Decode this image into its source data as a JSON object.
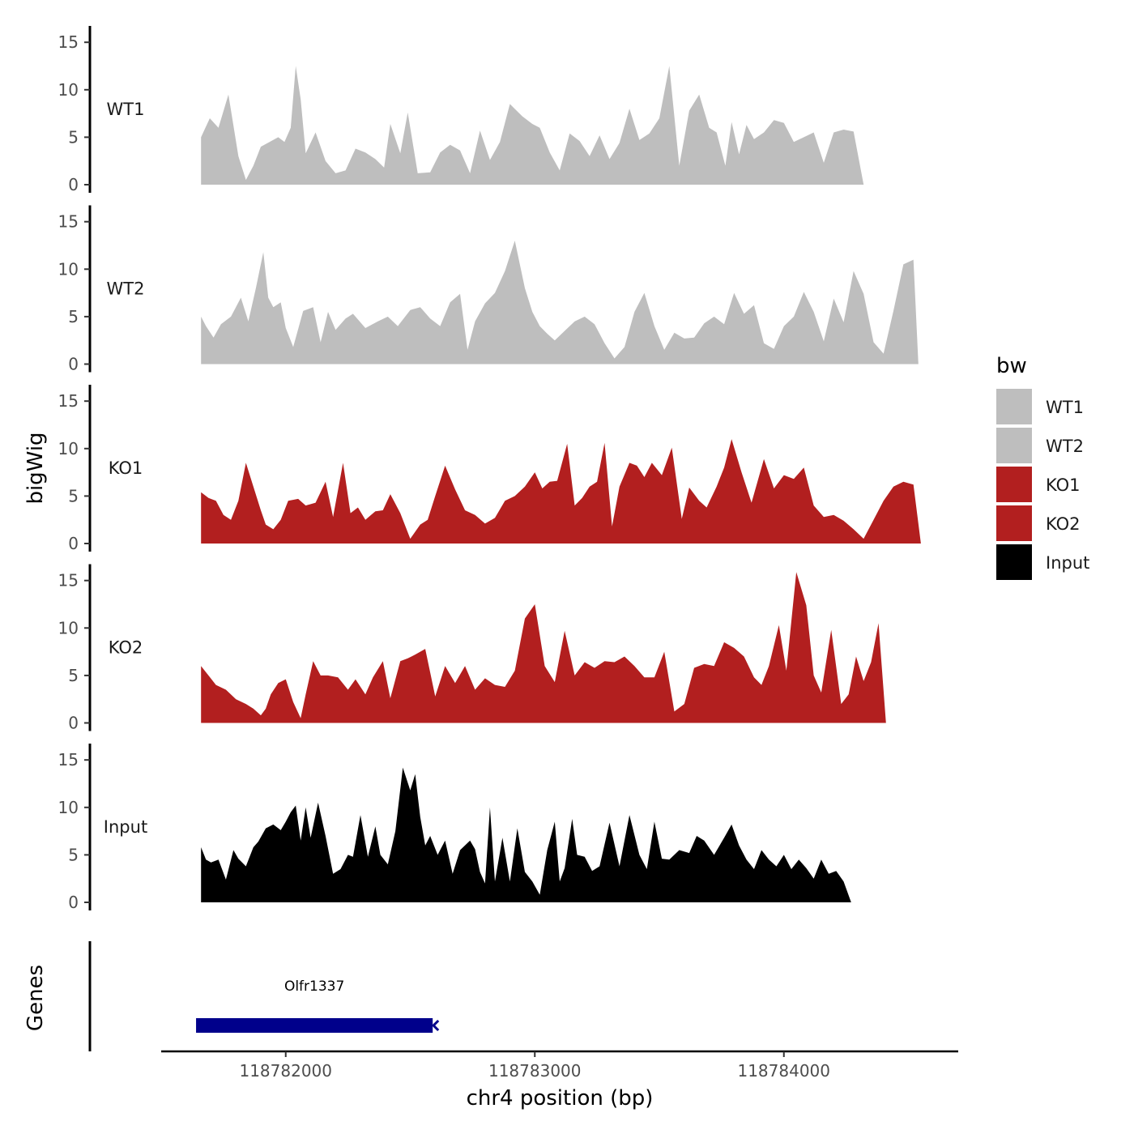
{
  "chart_data": {
    "type": "area",
    "ylabel": "bigWig",
    "xlabel": "chr4 position (bp)",
    "xlim": [
      118781500,
      118784700
    ],
    "x_ticks": [
      "118782000",
      "118783000",
      "118784000"
    ],
    "x_tick_values": [
      118782000,
      118783000,
      118784000
    ],
    "ylim": [
      0,
      16
    ],
    "y_ticks": [
      "0",
      "5",
      "10",
      "15"
    ],
    "y_tick_values": [
      0,
      5,
      10,
      15
    ],
    "grid": false,
    "legend": {
      "title": "bw",
      "placement": "right",
      "items": [
        {
          "label": "WT1",
          "color": "#bebebe"
        },
        {
          "label": "WT2",
          "color": "#bebebe"
        },
        {
          "label": "KO1",
          "color": "#b21f1f"
        },
        {
          "label": "KO2",
          "color": "#b21f1f"
        },
        {
          "label": "Input",
          "color": "#000000"
        }
      ]
    },
    "tracks": [
      {
        "name": "WT1",
        "color": "#bebebe",
        "x": [
          118781660,
          118781695,
          118781730,
          118781770,
          118781810,
          118781840,
          118781870,
          118781900,
          118781935,
          118781970,
          118781995,
          118782020,
          118782040,
          118782060,
          118782080,
          118782120,
          118782160,
          118782200,
          118782240,
          118782280,
          118782320,
          118782360,
          118782395,
          118782420,
          118782460,
          118782490,
          118782530,
          118782580,
          118782620,
          118782660,
          118782700,
          118782740,
          118782780,
          118782820,
          118782860,
          118782900,
          118782950,
          118782990,
          118783020,
          118783060,
          118783100,
          118783140,
          118783180,
          118783220,
          118783260,
          118783300,
          118783340,
          118783380,
          118783420,
          118783460,
          118783500,
          118783540,
          118783580,
          118783620,
          118783660,
          118783700,
          118783730,
          118783765,
          118783790,
          118783820,
          118783850,
          118783880,
          118783920,
          118783960,
          118784000,
          118784040,
          118784080,
          118784120,
          118784160,
          118784200,
          118784240,
          118784280,
          118784320,
          118784360,
          118784400,
          118784440,
          118784470,
          118784500,
          118784540,
          118784565
        ],
        "y": [
          5,
          7,
          6,
          9.5,
          3,
          0.5,
          2,
          4,
          4.5,
          5,
          4.5,
          6,
          12.5,
          9,
          3.3,
          5.5,
          2.5,
          1.2,
          1.5,
          3.8,
          3.4,
          2.7,
          1.8,
          6.4,
          3.3,
          7.6,
          1.2,
          1.3,
          3.4,
          4.2,
          3.6,
          1.2,
          5.7,
          2.6,
          4.5,
          8.5,
          7.2,
          6.4,
          6,
          3.4,
          1.5,
          5.4,
          4.6,
          3,
          5.2,
          2.7,
          4.4,
          8,
          4.7,
          5.4,
          7,
          12.5,
          2,
          7.8,
          9.5,
          6,
          5.5,
          2,
          6.6,
          3.2,
          6.3,
          4.8,
          5.5,
          6.8,
          6.5,
          4.5,
          5,
          5.5,
          2.3,
          5.5,
          5.8,
          5.6,
          0,
          0,
          0,
          0,
          0,
          0,
          0,
          0
        ]
      },
      {
        "name": "WT2",
        "color": "#bebebe",
        "x": [
          118781660,
          118781680,
          118781710,
          118781740,
          118781780,
          118781820,
          118781850,
          118781880,
          118781910,
          118781930,
          118781950,
          118781980,
          118782000,
          118782030,
          118782070,
          118782110,
          118782140,
          118782170,
          118782200,
          118782240,
          118782270,
          118782320,
          118782370,
          118782410,
          118782450,
          118782500,
          118782540,
          118782580,
          118782620,
          118782660,
          118782700,
          118782730,
          118782760,
          118782800,
          118782840,
          118782880,
          118782920,
          118782960,
          118782990,
          118783020,
          118783050,
          118783080,
          118783120,
          118783160,
          118783200,
          118783240,
          118783280,
          118783320,
          118783360,
          118783400,
          118783440,
          118783480,
          118783520,
          118783560,
          118783600,
          118783640,
          118783680,
          118783720,
          118783760,
          118783800,
          118783840,
          118783880,
          118783920,
          118783960,
          118784000,
          118784040,
          118784080,
          118784120,
          118784160,
          118784200,
          118784240,
          118784280,
          118784320,
          118784360,
          118784400,
          118784440,
          118784480,
          118784520,
          118784540,
          118784555
        ],
        "y": [
          5,
          4,
          2.8,
          4.2,
          5,
          7,
          4.5,
          8,
          11.8,
          7,
          6,
          6.5,
          3.8,
          1.8,
          5.6,
          6,
          2.3,
          5.5,
          3.6,
          4.8,
          5.3,
          3.8,
          4.5,
          5,
          4,
          5.7,
          6,
          4.8,
          4,
          6.5,
          7.4,
          1.5,
          4.5,
          6.4,
          7.5,
          9.8,
          13,
          8,
          5.5,
          4,
          3.2,
          2.5,
          3.5,
          4.5,
          5,
          4.2,
          2.2,
          0.6,
          1.8,
          5.5,
          7.5,
          4,
          1.5,
          3.3,
          2.7,
          2.8,
          4.3,
          5,
          4.2,
          7.5,
          5.3,
          6.2,
          2.2,
          1.6,
          4,
          5,
          7.6,
          5.5,
          2.4,
          6.9,
          4.4,
          9.8,
          7.4,
          2.3,
          1.1,
          5.6,
          10.5,
          11,
          0,
          0
        ]
      },
      {
        "name": "KO1",
        "color": "#b21f1f",
        "x": [
          118781660,
          118781690,
          118781720,
          118781750,
          118781780,
          118781810,
          118781840,
          118781870,
          118781900,
          118781920,
          118781950,
          118781980,
          118782010,
          118782050,
          118782080,
          118782120,
          118782160,
          118782190,
          118782230,
          118782260,
          118782290,
          118782320,
          118782360,
          118782390,
          118782420,
          118782460,
          118782500,
          118782540,
          118782570,
          118782600,
          118782640,
          118782680,
          118782720,
          118782760,
          118782800,
          118782840,
          118782880,
          118782920,
          118782960,
          118783000,
          118783030,
          118783060,
          118783090,
          118783130,
          118783160,
          118783190,
          118783220,
          118783250,
          118783280,
          118783310,
          118783340,
          118783380,
          118783410,
          118783440,
          118783470,
          118783510,
          118783550,
          118783590,
          118783620,
          118783660,
          118783690,
          118783730,
          118783760,
          118783790,
          118783830,
          118783870,
          118783920,
          118783960,
          118784000,
          118784040,
          118784080,
          118784120,
          118784160,
          118784200,
          118784240,
          118784280,
          118784320,
          118784360,
          118784400,
          118784440,
          118784480,
          118784520,
          118784550
        ],
        "y": [
          5.4,
          4.8,
          4.5,
          3,
          2.5,
          4.5,
          8.5,
          6,
          3.5,
          2,
          1.5,
          2.5,
          4.5,
          4.7,
          4,
          4.3,
          6.5,
          2.8,
          8.5,
          3.2,
          3.8,
          2.5,
          3.4,
          3.5,
          5.2,
          3.2,
          0.5,
          2,
          2.5,
          5,
          8.2,
          5.7,
          3.5,
          3,
          2.1,
          2.7,
          4.5,
          5,
          6,
          7.5,
          5.8,
          6.5,
          6.6,
          10.5,
          4,
          4.8,
          6,
          6.5,
          10.6,
          1.8,
          6,
          8.5,
          8.2,
          7,
          8.5,
          7.2,
          10.1,
          2.6,
          5.9,
          4.5,
          3.8,
          6,
          8,
          11,
          7.5,
          4.3,
          8.9,
          5.8,
          7.2,
          6.8,
          8,
          4,
          2.8,
          3,
          2.4,
          1.5,
          0.5,
          2.5,
          4.5,
          6,
          6.5,
          6.2,
          0
        ]
      },
      {
        "name": "KO2",
        "color": "#b21f1f",
        "x": [
          118781660,
          118781690,
          118781720,
          118781760,
          118781800,
          118781840,
          118781870,
          118781900,
          118781920,
          118781940,
          118781970,
          118782000,
          118782030,
          118782060,
          118782080,
          118782110,
          118782140,
          118782170,
          118782210,
          118782250,
          118782280,
          118782320,
          118782350,
          118782390,
          118782420,
          118782460,
          118782490,
          118782520,
          118782560,
          118782600,
          118782640,
          118782680,
          118782720,
          118782760,
          118782800,
          118782840,
          118782880,
          118782920,
          118782960,
          118783000,
          118783040,
          118783080,
          118783120,
          118783160,
          118783200,
          118783240,
          118783280,
          118783320,
          118783360,
          118783400,
          118783440,
          118783480,
          118783520,
          118783560,
          118783600,
          118783640,
          118783680,
          118783720,
          118783760,
          118783800,
          118783840,
          118783880,
          118783910,
          118783940,
          118783980,
          118784010,
          118784050,
          118784090,
          118784120,
          118784150,
          118784190,
          118784230,
          118784260,
          118784290,
          118784320,
          118784350,
          118784380,
          118784410,
          118784440,
          118784470,
          118784510,
          118784550
        ],
        "y": [
          6,
          5,
          4,
          3.5,
          2.5,
          2,
          1.5,
          0.8,
          1.5,
          3,
          4.2,
          4.6,
          2.2,
          0.5,
          3,
          6.5,
          5,
          5,
          4.8,
          3.5,
          4.6,
          3,
          4.8,
          6.5,
          2.6,
          6.5,
          6.8,
          7.2,
          7.8,
          2.8,
          6,
          4.2,
          6,
          3.5,
          4.7,
          4,
          3.8,
          5.5,
          11,
          12.5,
          6,
          4.3,
          9.7,
          5,
          6.4,
          5.8,
          6.5,
          6.4,
          7,
          6,
          4.8,
          4.8,
          7.5,
          1.2,
          2,
          5.8,
          6.2,
          6,
          8.5,
          7.9,
          7,
          4.8,
          4,
          6,
          10.3,
          5.5,
          15.9,
          12.4,
          5,
          3.2,
          9.8,
          2,
          3,
          7,
          4.4,
          6.4,
          10.5,
          0,
          0,
          0,
          0,
          0
        ]
      },
      {
        "name": "Input",
        "color": "#000000",
        "x": [
          118781660,
          118781680,
          118781700,
          118781730,
          118781760,
          118781790,
          118781810,
          118781840,
          118781870,
          118781890,
          118781920,
          118781950,
          118781980,
          118782000,
          118782020,
          118782040,
          118782060,
          118782080,
          118782100,
          118782130,
          118782160,
          118782190,
          118782220,
          118782250,
          118782270,
          118782300,
          118782330,
          118782360,
          118782380,
          118782410,
          118782440,
          118782470,
          118782500,
          118782520,
          118782540,
          118782560,
          118782580,
          118782610,
          118782640,
          118782670,
          118782700,
          118782740,
          118782760,
          118782780,
          118782800,
          118782820,
          118782840,
          118782870,
          118782900,
          118782930,
          118782960,
          118782990,
          118783020,
          118783050,
          118783080,
          118783100,
          118783120,
          118783150,
          118783170,
          118783200,
          118783230,
          118783260,
          118783300,
          118783340,
          118783380,
          118783420,
          118783450,
          118783480,
          118783510,
          118783540,
          118783580,
          118783620,
          118783650,
          118783680,
          118783720,
          118783760,
          118783790,
          118783820,
          118783850,
          118783880,
          118783910,
          118783940,
          118783970,
          118784000,
          118784030,
          118784060,
          118784090,
          118784120,
          118784150,
          118784180,
          118784210,
          118784240,
          118784270,
          118784300,
          118784330,
          118784360,
          118784390,
          118784420,
          118784450,
          118784480,
          118784510,
          118784540,
          118784560
        ],
        "y": [
          5.8,
          4.5,
          4.2,
          4.5,
          2.4,
          5.5,
          4.6,
          3.8,
          5.8,
          6.4,
          7.8,
          8.2,
          7.6,
          8.5,
          9.5,
          10.2,
          6.5,
          10,
          6.8,
          10.5,
          7,
          3,
          3.5,
          5,
          4.8,
          9.2,
          4.8,
          8,
          5,
          4,
          7.5,
          14.2,
          11.8,
          13.5,
          9,
          6,
          7,
          5,
          6.5,
          3,
          5.5,
          6.5,
          5.6,
          3.2,
          2,
          10,
          2.2,
          6.8,
          2.2,
          7.8,
          3.2,
          2.2,
          0.8,
          5.5,
          8.5,
          2.2,
          3.6,
          8.8,
          5,
          4.8,
          3.3,
          3.8,
          8.4,
          3.8,
          9.2,
          5,
          3.5,
          8.5,
          4.6,
          4.5,
          5.5,
          5.2,
          7,
          6.5,
          5,
          6.8,
          8.2,
          6,
          4.5,
          3.5,
          5.5,
          4.5,
          3.8,
          5,
          3.5,
          4.5,
          3.6,
          2.5,
          4.5,
          3,
          3.3,
          2.2,
          0,
          0,
          0,
          0,
          0,
          0,
          0,
          0,
          0,
          0,
          0
        ]
      }
    ],
    "gene_track": {
      "label": "Genes",
      "genes": [
        {
          "name": "Olfr1337",
          "start": 118781640,
          "end": 118782590,
          "strand": "-",
          "color": "#00008b"
        }
      ]
    }
  }
}
